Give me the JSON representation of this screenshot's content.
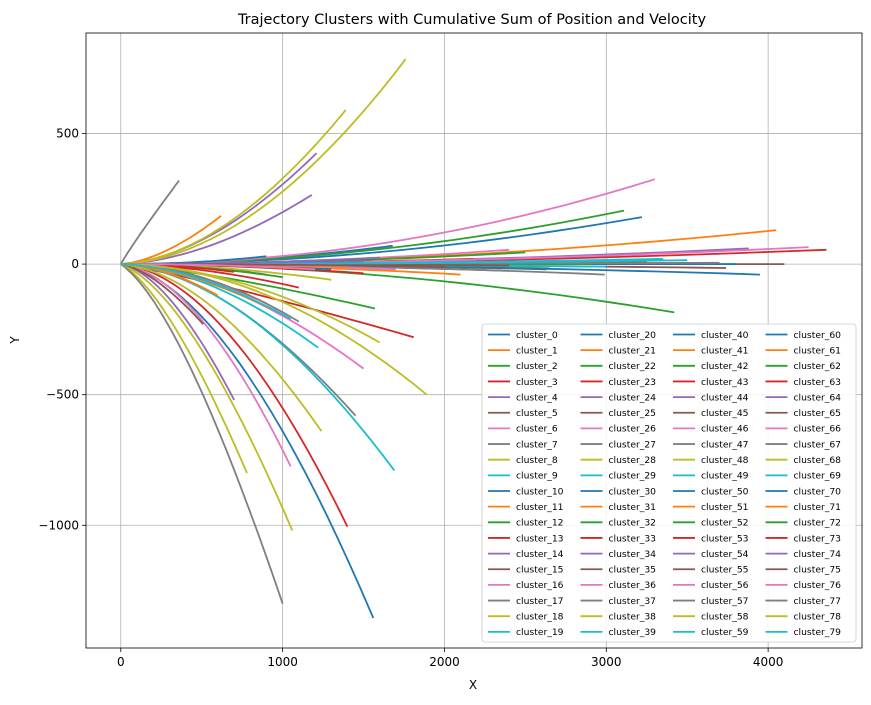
{
  "chart_data": {
    "type": "line",
    "title": "Trajectory Clusters with Cumulative Sum of Position and Velocity",
    "xlabel": "X",
    "ylabel": "Y",
    "xlim": [
      -215,
      4580
    ],
    "ylim": [
      -1470,
      885
    ],
    "xticks": [
      0,
      1000,
      2000,
      3000,
      4000
    ],
    "yticks": [
      500,
      0,
      -500,
      -1000
    ],
    "xtick_labels": [
      "0",
      "1000",
      "2000",
      "3000",
      "4000"
    ],
    "ytick_labels": [
      "500",
      "0",
      "−500",
      "−1000"
    ],
    "grid": true,
    "legend_placement": "lower-right",
    "legend_columns": 4,
    "colors": [
      "#1f77b4",
      "#ff7f0e",
      "#2ca02c",
      "#d62728",
      "#9467bd",
      "#8c564b",
      "#e377c2",
      "#7f7f7f",
      "#bcbd22",
      "#17becf"
    ],
    "series": [
      {
        "name": "cluster_0",
        "end": [
          1560,
          -1355
        ],
        "curv": 0.12
      },
      {
        "name": "cluster_1",
        "end": [
          2100,
          -40
        ],
        "curv": 0.05
      },
      {
        "name": "cluster_2",
        "end": [
          1570,
          -170
        ],
        "curv": 0.3
      },
      {
        "name": "cluster_3",
        "end": [
          1810,
          -280
        ],
        "curv": 0.4
      },
      {
        "name": "cluster_4",
        "end": [
          1180,
          265
        ],
        "curv": 0.1
      },
      {
        "name": "cluster_5",
        "end": [
          2630,
          -20
        ],
        "curv": 0.05
      },
      {
        "name": "cluster_6",
        "end": [
          1500,
          -400
        ],
        "curv": 0.1
      },
      {
        "name": "cluster_7",
        "end": [
          360,
          320
        ],
        "curv": 0.55
      },
      {
        "name": "cluster_8",
        "end": [
          780,
          -800
        ],
        "curv": 0.25
      },
      {
        "name": "cluster_9",
        "end": [
          1290,
          0
        ],
        "curv": 0
      },
      {
        "name": "cluster_10",
        "end": [
          1680,
          70
        ],
        "curv": 0.05
      },
      {
        "name": "cluster_11",
        "end": [
          3500,
          5
        ],
        "curv": 0
      },
      {
        "name": "cluster_12",
        "end": [
          3420,
          -185
        ],
        "curv": 0.03
      },
      {
        "name": "cluster_13",
        "end": [
          1400,
          -1005
        ],
        "curv": 0.08
      },
      {
        "name": "cluster_14",
        "end": [
          700,
          -520
        ],
        "curv": 0.15
      },
      {
        "name": "cluster_15",
        "end": [
          2350,
          -25
        ],
        "curv": 0.05
      },
      {
        "name": "cluster_16",
        "end": [
          1050,
          -775
        ],
        "curv": 0.1
      },
      {
        "name": "cluster_17",
        "end": [
          1000,
          -1300
        ],
        "curv": 0.25
      },
      {
        "name": "cluster_18",
        "end": [
          1890,
          -500
        ],
        "curv": 0.02
      },
      {
        "name": "cluster_19",
        "end": [
          1220,
          -320
        ],
        "curv": 0.1
      },
      {
        "name": "cluster_20",
        "end": [
          3220,
          180
        ],
        "curv": 0.02
      },
      {
        "name": "cluster_21",
        "end": [
          620,
          185
        ],
        "curv": 0.15
      },
      {
        "name": "cluster_22",
        "end": [
          3110,
          205
        ],
        "curv": 0.03
      },
      {
        "name": "cluster_23",
        "end": [
          1500,
          -35
        ],
        "curv": 0.05
      },
      {
        "name": "cluster_24",
        "end": [
          3880,
          60
        ],
        "curv": 0.02
      },
      {
        "name": "cluster_25",
        "end": [
          3740,
          -15
        ],
        "curv": 0
      },
      {
        "name": "cluster_26",
        "end": [
          2400,
          55
        ],
        "curv": 0.02
      },
      {
        "name": "cluster_27",
        "end": [
          2990,
          -40
        ],
        "curv": 0.02
      },
      {
        "name": "cluster_28",
        "end": [
          1060,
          -1020
        ],
        "curv": 0.2
      },
      {
        "name": "cluster_29",
        "end": [
          3360,
          15
        ],
        "curv": 0
      },
      {
        "name": "cluster_30",
        "end": [
          2930,
          10
        ],
        "curv": 0
      },
      {
        "name": "cluster_31",
        "end": [
          4050,
          130
        ],
        "curv": 0.01
      },
      {
        "name": "cluster_32",
        "end": [
          2500,
          45
        ],
        "curv": 0.02
      },
      {
        "name": "cluster_33",
        "end": [
          2180,
          20
        ],
        "curv": 0
      },
      {
        "name": "cluster_34",
        "end": [
          1210,
          425
        ],
        "curv": 0.1
      },
      {
        "name": "cluster_35",
        "end": [
          4100,
          0
        ],
        "curv": 0
      },
      {
        "name": "cluster_36",
        "end": [
          3300,
          325
        ],
        "curv": 0.01
      },
      {
        "name": "cluster_37",
        "end": [
          1450,
          -580
        ],
        "curv": 0.1
      },
      {
        "name": "cluster_38",
        "end": [
          1390,
          590
        ],
        "curv": 0.08
      },
      {
        "name": "cluster_39",
        "end": [
          1690,
          -790
        ],
        "curv": 0.08
      },
      {
        "name": "cluster_40",
        "end": [
          3950,
          -40
        ],
        "curv": 0.01
      },
      {
        "name": "cluster_41",
        "end": [
          2500,
          0
        ],
        "curv": 0
      },
      {
        "name": "cluster_42",
        "end": [
          2650,
          -10
        ],
        "curv": 0
      },
      {
        "name": "cluster_43",
        "end": [
          4360,
          55
        ],
        "curv": 0.01
      },
      {
        "name": "cluster_44",
        "end": [
          2200,
          10
        ],
        "curv": 0
      },
      {
        "name": "cluster_45",
        "end": [
          3250,
          10
        ],
        "curv": 0
      },
      {
        "name": "cluster_46",
        "end": [
          4250,
          65
        ],
        "curv": 0.01
      },
      {
        "name": "cluster_47",
        "end": [
          1800,
          -5
        ],
        "curv": 0
      },
      {
        "name": "cluster_48",
        "end": [
          1760,
          785
        ],
        "curv": 0.06
      },
      {
        "name": "cluster_49",
        "end": [
          3350,
          20
        ],
        "curv": 0
      },
      {
        "name": "cluster_50",
        "end": [
          3800,
          0
        ],
        "curv": 0
      },
      {
        "name": "cluster_51",
        "end": [
          960,
          -180
        ],
        "curv": 0.15
      },
      {
        "name": "cluster_52",
        "end": [
          2900,
          0
        ],
        "curv": 0
      },
      {
        "name": "cluster_53",
        "end": [
          2100,
          0
        ],
        "curv": 0
      },
      {
        "name": "cluster_54",
        "end": [
          1500,
          10
        ],
        "curv": 0
      },
      {
        "name": "cluster_55",
        "end": [
          510,
          -230
        ],
        "curv": 0.2
      },
      {
        "name": "cluster_56",
        "end": [
          900,
          -150
        ],
        "curv": 0.1
      },
      {
        "name": "cluster_57",
        "end": [
          3700,
          5
        ],
        "curv": 0
      },
      {
        "name": "cluster_58",
        "end": [
          1240,
          -640
        ],
        "curv": 0.1
      },
      {
        "name": "cluster_59",
        "end": [
          3000,
          -10
        ],
        "curv": 0
      },
      {
        "name": "cluster_60",
        "end": [
          1300,
          -20
        ],
        "curv": 0
      },
      {
        "name": "cluster_61",
        "end": [
          600,
          -120
        ],
        "curv": 0.1
      },
      {
        "name": "cluster_62",
        "end": [
          800,
          -30
        ],
        "curv": 0.1
      },
      {
        "name": "cluster_63",
        "end": [
          1100,
          -90
        ],
        "curv": 0.1
      },
      {
        "name": "cluster_64",
        "end": [
          1050,
          5
        ],
        "curv": 0
      },
      {
        "name": "cluster_65",
        "end": [
          2400,
          -5
        ],
        "curv": 0
      },
      {
        "name": "cluster_66",
        "end": [
          1700,
          -20
        ],
        "curv": 0
      },
      {
        "name": "cluster_67",
        "end": [
          900,
          -40
        ],
        "curv": 0.05
      },
      {
        "name": "cluster_68",
        "end": [
          1300,
          -60
        ],
        "curv": 0.05
      },
      {
        "name": "cluster_69",
        "end": [
          3500,
          15
        ],
        "curv": 0
      },
      {
        "name": "cluster_70",
        "end": [
          900,
          30
        ],
        "curv": 0
      },
      {
        "name": "cluster_71",
        "end": [
          1400,
          -10
        ],
        "curv": 0
      },
      {
        "name": "cluster_72",
        "end": [
          1000,
          -50
        ],
        "curv": 0.05
      },
      {
        "name": "cluster_73",
        "end": [
          700,
          -30
        ],
        "curv": 0.05
      },
      {
        "name": "cluster_74",
        "end": [
          1600,
          25
        ],
        "curv": 0
      },
      {
        "name": "cluster_75",
        "end": [
          2000,
          -10
        ],
        "curv": 0
      },
      {
        "name": "cluster_76",
        "end": [
          1200,
          -20
        ],
        "curv": 0
      },
      {
        "name": "cluster_77",
        "end": [
          1100,
          -220
        ],
        "curv": 0.05
      },
      {
        "name": "cluster_78",
        "end": [
          1600,
          -300
        ],
        "curv": 0.05
      },
      {
        "name": "cluster_79",
        "end": [
          1050,
          -210
        ],
        "curv": 0.1
      }
    ]
  }
}
